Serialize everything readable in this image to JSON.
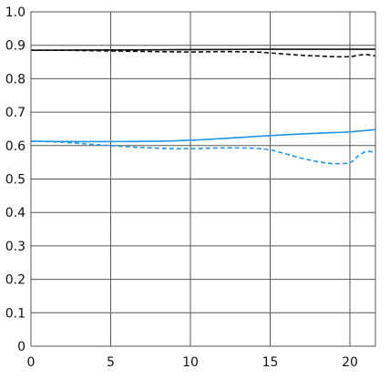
{
  "chart_data": {
    "type": "line",
    "title": "",
    "xlabel": "",
    "ylabel": "",
    "xlim": [
      0,
      21.6
    ],
    "ylim": [
      0,
      1.0
    ],
    "grid": true,
    "x_ticks": [
      0,
      5,
      10,
      15,
      20
    ],
    "x_tick_labels": [
      "0",
      "5",
      "10",
      "15",
      "20"
    ],
    "y_ticks": [
      0,
      0.1,
      0.2,
      0.3,
      0.4,
      0.5,
      0.6,
      0.7,
      0.8,
      0.9,
      1.0
    ],
    "y_tick_labels": [
      "0",
      "0.1",
      "0.2",
      "0.3",
      "0.4",
      "0.5",
      "0.6",
      "0.7",
      "0.8",
      "0.9",
      "1.0"
    ],
    "series": [
      {
        "color": "#111111",
        "dash": "solid",
        "x": [
          0,
          5,
          10,
          15,
          20,
          21.6
        ],
        "y": [
          0.885,
          0.886,
          0.887,
          0.888,
          0.888,
          0.888
        ]
      },
      {
        "color": "#111111",
        "dash": "dashed",
        "x": [
          0,
          2,
          5,
          8,
          10,
          12,
          14,
          15,
          17,
          18,
          19,
          20,
          20.5,
          21,
          21.6
        ],
        "y": [
          0.885,
          0.885,
          0.883,
          0.881,
          0.88,
          0.881,
          0.88,
          0.877,
          0.87,
          0.868,
          0.866,
          0.866,
          0.87,
          0.872,
          0.868
        ]
      },
      {
        "color": "#1f96e8",
        "dash": "solid",
        "x": [
          0,
          3,
          5,
          8,
          10,
          12,
          15,
          18,
          20,
          21.6
        ],
        "y": [
          0.613,
          0.612,
          0.612,
          0.613,
          0.616,
          0.621,
          0.63,
          0.637,
          0.641,
          0.648
        ]
      },
      {
        "color": "#1f96e8",
        "dash": "dashed",
        "x": [
          0,
          2,
          4,
          5,
          7,
          9,
          10,
          12,
          14,
          15,
          16,
          17,
          18,
          19,
          20,
          20.5,
          21,
          21.6
        ],
        "y": [
          0.613,
          0.61,
          0.603,
          0.6,
          0.594,
          0.591,
          0.591,
          0.593,
          0.592,
          0.587,
          0.575,
          0.562,
          0.552,
          0.546,
          0.549,
          0.568,
          0.582,
          0.58
        ]
      }
    ]
  }
}
